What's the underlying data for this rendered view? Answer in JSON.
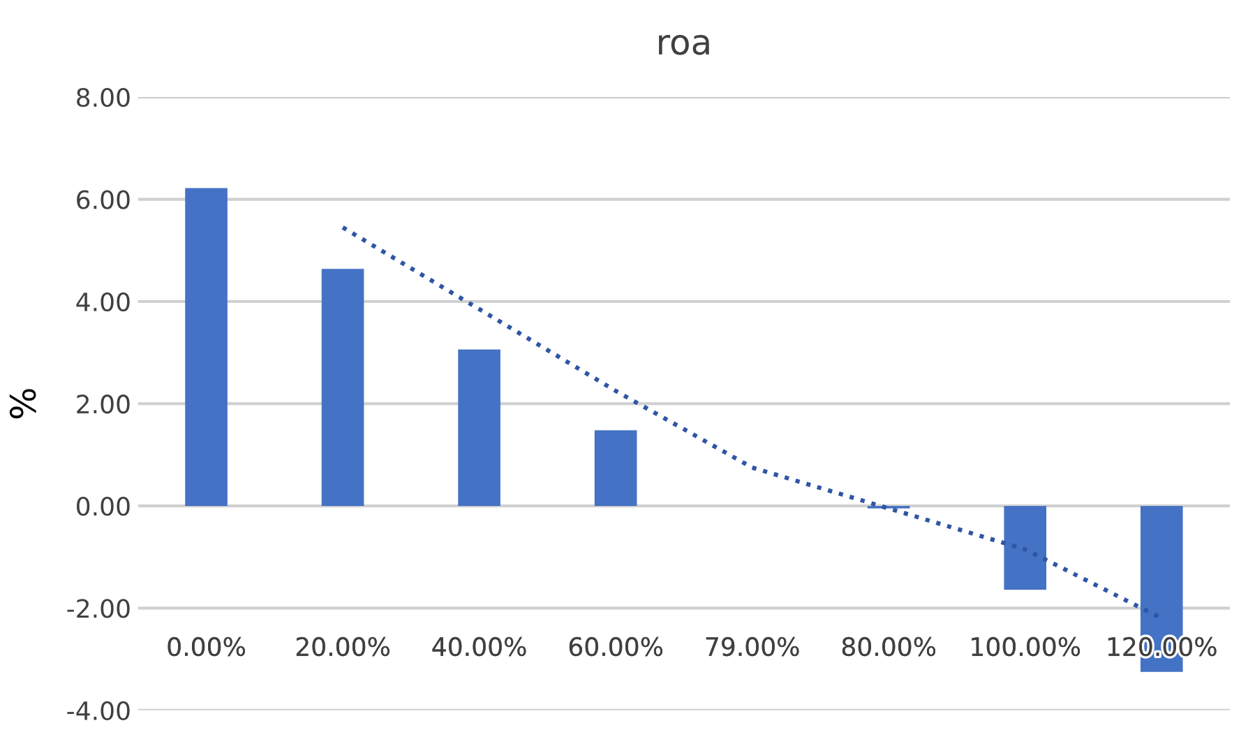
{
  "chart_data": {
    "type": "bar",
    "title": "roa",
    "ylabel": "%",
    "categories": [
      "0.00%",
      "20.00%",
      "40.00%",
      "60.00%",
      "79.00%",
      "80.00%",
      "100.00%",
      "120.00%"
    ],
    "series": [
      {
        "color": "#4472c4",
        "values": [
          6.22,
          4.64,
          3.06,
          1.48,
          0.0,
          -0.05,
          -1.64,
          -3.25
        ]
      },
      {
        "type": "line",
        "color": "#2f55a4",
        "line_style": "dotted",
        "values": [
          null,
          5.45,
          3.85,
          2.25,
          0.75,
          -0.05,
          -0.85,
          -2.2
        ]
      }
    ],
    "ylim": [
      -4,
      8
    ],
    "yticks": [
      {
        "value": -4,
        "label": "-4.00"
      },
      {
        "value": -2,
        "label": "-2.00"
      },
      {
        "value": 0,
        "label": "0.00"
      },
      {
        "value": 2,
        "label": "2.00"
      },
      {
        "value": 4,
        "label": "4.00"
      },
      {
        "value": 6,
        "label": "6.00"
      },
      {
        "value": 8,
        "label": "8.00"
      }
    ],
    "grid": "y"
  }
}
